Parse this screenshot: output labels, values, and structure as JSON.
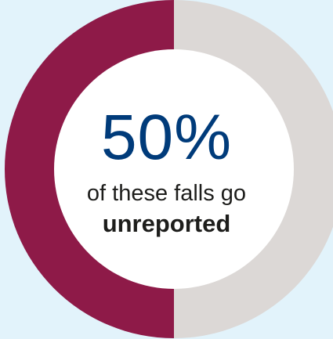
{
  "chart_data": {
    "type": "pie",
    "variant": "donut",
    "slices": [
      {
        "label": "unreported",
        "value": 50,
        "color": "#8e1a48"
      },
      {
        "label": "",
        "value": 50,
        "color": "#dcd8d6"
      }
    ]
  },
  "center": {
    "value": "50%",
    "line1": "of these falls go",
    "line2": "unreported"
  },
  "colors": {
    "background": "#e2f3fb",
    "accent": "#003b7a",
    "primary_slice": "#8e1a48",
    "secondary_slice": "#dcd8d6",
    "inner_circle": "#ffffff",
    "text": "#1d1d1b"
  }
}
